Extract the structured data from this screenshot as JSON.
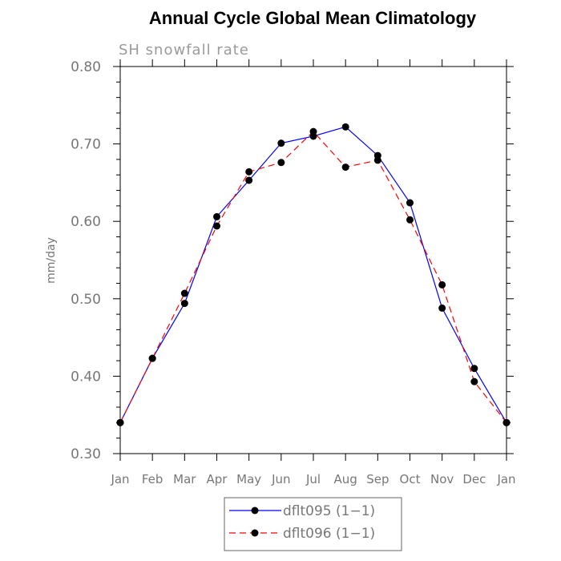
{
  "chart_data": {
    "type": "line",
    "title": "Annual Cycle Global Mean Climatology",
    "subtitle": "SH snowfall rate",
    "xlabel": "",
    "ylabel": "mm/day",
    "categories": [
      "Jan",
      "Feb",
      "Mar",
      "Apr",
      "May",
      "Jun",
      "Jul",
      "Aug",
      "Sep",
      "Oct",
      "Nov",
      "Dec",
      "Jan"
    ],
    "yticks": [
      "0.30",
      "0.40",
      "0.50",
      "0.60",
      "0.70",
      "0.80"
    ],
    "ylim": [
      0.3,
      0.8
    ],
    "grid": false,
    "legend_position": "bottom-center",
    "series": [
      {
        "name": "dflt095 (1−1)",
        "color": "#0000ff",
        "dash": "solid",
        "values": [
          0.34,
          0.423,
          0.494,
          0.606,
          0.653,
          0.701,
          0.71,
          0.722,
          0.685,
          0.624,
          0.488,
          0.41,
          0.34
        ]
      },
      {
        "name": "dflt096 (1−1)",
        "color": "#ff0000",
        "dash": "dashed",
        "values": [
          0.34,
          0.423,
          0.507,
          0.594,
          0.664,
          0.676,
          0.716,
          0.67,
          0.679,
          0.602,
          0.518,
          0.393,
          0.34
        ]
      }
    ]
  }
}
